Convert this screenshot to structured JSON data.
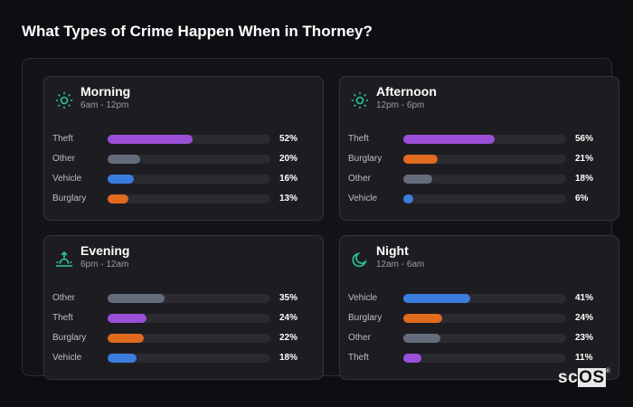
{
  "title": "What Types of Crime Happen When in Thorney?",
  "colors": {
    "Theft": "#9b4fd9",
    "Other": "#646c7c",
    "Vehicle": "#3b7ddd",
    "Burglary": "#e06a1e",
    "icon": "#2ec79a"
  },
  "chart_data": [
    {
      "type": "bar",
      "title": "Morning",
      "subtitle": "6am - 12pm",
      "icon": "sun-icon",
      "categories": [
        "Theft",
        "Other",
        "Vehicle",
        "Burglary"
      ],
      "values": [
        52,
        20,
        16,
        13
      ],
      "value_labels": [
        "52%",
        "20%",
        "16%",
        "13%"
      ],
      "xlim": [
        0,
        100
      ]
    },
    {
      "type": "bar",
      "title": "Afternoon",
      "subtitle": "12pm - 6pm",
      "icon": "sun-icon",
      "categories": [
        "Theft",
        "Burglary",
        "Other",
        "Vehicle"
      ],
      "values": [
        56,
        21,
        18,
        6
      ],
      "value_labels": [
        "56%",
        "21%",
        "18%",
        "6%"
      ],
      "xlim": [
        0,
        100
      ]
    },
    {
      "type": "bar",
      "title": "Evening",
      "subtitle": "6pm - 12am",
      "icon": "sunset-icon",
      "categories": [
        "Other",
        "Theft",
        "Burglary",
        "Vehicle"
      ],
      "values": [
        35,
        24,
        22,
        18
      ],
      "value_labels": [
        "35%",
        "24%",
        "22%",
        "18%"
      ],
      "xlim": [
        0,
        100
      ]
    },
    {
      "type": "bar",
      "title": "Night",
      "subtitle": "12am - 6am",
      "icon": "moon-icon",
      "categories": [
        "Vehicle",
        "Burglary",
        "Other",
        "Theft"
      ],
      "values": [
        41,
        24,
        23,
        11
      ],
      "value_labels": [
        "41%",
        "24%",
        "23%",
        "11%"
      ],
      "xlim": [
        0,
        100
      ]
    }
  ],
  "logo": {
    "text_a": "sc",
    "text_b": "OS",
    "reg": "®"
  }
}
